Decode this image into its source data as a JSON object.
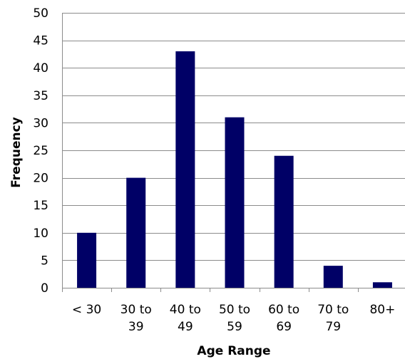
{
  "chart_data": {
    "type": "bar",
    "categories": [
      [
        "< 30"
      ],
      [
        "30 to",
        "39"
      ],
      [
        "40 to",
        "49"
      ],
      [
        "50 to",
        "59"
      ],
      [
        "60 to",
        "69"
      ],
      [
        "70 to",
        "79"
      ],
      [
        "80+"
      ]
    ],
    "values": [
      10,
      20,
      43,
      31,
      24,
      4,
      1
    ],
    "xlabel": "Age Range",
    "ylabel": "Frequency",
    "ylim": [
      0,
      50
    ],
    "yticks": [
      0,
      5,
      10,
      15,
      20,
      25,
      30,
      35,
      40,
      45,
      50
    ],
    "grid": true,
    "bar_color": "#000066",
    "grid_color": "#8c8c8c"
  }
}
